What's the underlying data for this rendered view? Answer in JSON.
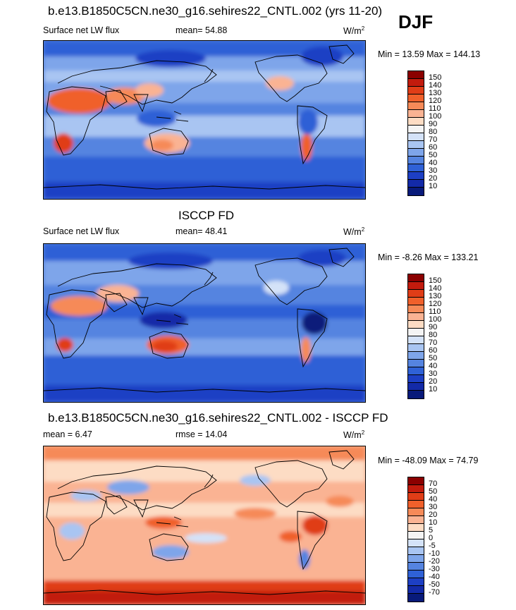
{
  "season": "DJF",
  "unit_prefix": "W/m",
  "unit_exp": "2",
  "panels": [
    {
      "title": "b.e13.B1850C5CN.ne30_g16.sehires22_CNTL.002 (yrs 11-20)",
      "left_label": "Surface net LW flux",
      "stat_label": "mean=  54.88",
      "minmax": "Min =  13.59 Max = 144.13",
      "colorbar": {
        "labels": [
          "150",
          "140",
          "130",
          "120",
          "110",
          "100",
          "90",
          "80",
          "70",
          "60",
          "50",
          "40",
          "30",
          "20",
          "10"
        ],
        "colors": [
          "#8b0000",
          "#c21b0d",
          "#e03d17",
          "#f0602b",
          "#f68a58",
          "#fab393",
          "#fddcc4",
          "#f4f4f4",
          "#d4e2f8",
          "#a9c5f2",
          "#7ea5ea",
          "#5584e0",
          "#2f61d6",
          "#1d3fc4",
          "#132aa8",
          "#081a7a"
        ]
      }
    },
    {
      "title": "ISCCP FD",
      "left_label": "Surface net LW flux",
      "stat_label": "mean=  48.41",
      "minmax": "Min =  -8.26 Max = 133.21",
      "colorbar": {
        "labels": [
          "150",
          "140",
          "130",
          "120",
          "110",
          "100",
          "90",
          "80",
          "70",
          "60",
          "50",
          "40",
          "30",
          "20",
          "10"
        ],
        "colors": [
          "#8b0000",
          "#c21b0d",
          "#e03d17",
          "#f0602b",
          "#f68a58",
          "#fab393",
          "#fddcc4",
          "#f4f4f4",
          "#d4e2f8",
          "#a9c5f2",
          "#7ea5ea",
          "#5584e0",
          "#2f61d6",
          "#1d3fc4",
          "#132aa8",
          "#081a7a"
        ]
      }
    },
    {
      "title": "b.e13.B1850C5CN.ne30_g16.sehires22_CNTL.002 - ISCCP FD",
      "left_label": "mean =   6.47",
      "stat_label": "rmse =  14.04",
      "minmax": "Min = -48.09 Max =  74.79",
      "colorbar": {
        "labels": [
          "70",
          "50",
          "40",
          "30",
          "20",
          "10",
          "5",
          "0",
          "-5",
          "-10",
          "-20",
          "-30",
          "-40",
          "-50",
          "-70"
        ],
        "colors": [
          "#8b0000",
          "#c21b0d",
          "#e03d17",
          "#f0602b",
          "#f68a58",
          "#fab393",
          "#fddcc4",
          "#f4f4f4",
          "#d4e2f8",
          "#a9c5f2",
          "#7ea5ea",
          "#5584e0",
          "#2f61d6",
          "#1d3fc4",
          "#132aa8",
          "#081a7a"
        ]
      }
    }
  ]
}
